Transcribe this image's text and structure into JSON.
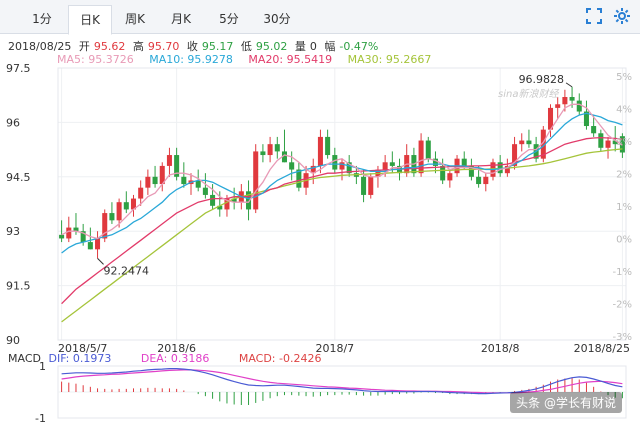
{
  "tabs": [
    {
      "label": "1分",
      "active": false
    },
    {
      "label": "日K",
      "active": true
    },
    {
      "label": "周K",
      "active": false
    },
    {
      "label": "月K",
      "active": false
    },
    {
      "label": "5分",
      "active": false
    },
    {
      "label": "30分",
      "active": false
    }
  ],
  "info": {
    "date": "2018/08/25",
    "open_label": "开",
    "open": "95.62",
    "high_label": "高",
    "high": "95.70",
    "close_label": "收",
    "close": "95.17",
    "low_label": "低",
    "low": "95.02",
    "vol_label": "量",
    "vol": "0",
    "chg_label": "幅",
    "chg": "-0.47%"
  },
  "ma": {
    "ma5": "MA5: 95.3726",
    "ma10": "MA10: 95.9278",
    "ma20": "MA20: 95.5419",
    "ma30": "MA30: 95.2667"
  },
  "macd_info": {
    "title": "MACD",
    "dif": "DIF: 0.1973",
    "dea": "DEA: 0.3186",
    "macd": "MACD: -0.2426"
  },
  "watermark": "头条 @学长有财说",
  "logo": "sina新浪财经",
  "colors": {
    "up": "#e0393e",
    "down": "#2ea043",
    "ma5": "#e89ab6",
    "ma10": "#2aa8d8",
    "ma20": "#e23b6a",
    "ma30": "#a5c43a",
    "dif": "#4a5bd4",
    "dea": "#e040c8"
  },
  "chart_data": {
    "type": "candlestick",
    "ylim": [
      90,
      97.5
    ],
    "y_ticks": [
      "97.5",
      "96",
      "94.5",
      "93",
      "91.5",
      "90"
    ],
    "pct_ticks": [
      "5%",
      "4%",
      "3%",
      "2%",
      "1%",
      "0%",
      "-1%",
      "-2%",
      "-3%"
    ],
    "x_ticks": [
      "2018/5/7",
      "2018/6",
      "2018/7",
      "2018/8",
      "2018/8/25"
    ],
    "annotations": {
      "high": "96.9828",
      "low": "92.2474"
    },
    "candles": [
      [
        92.9,
        93.3,
        92.7,
        92.8
      ],
      [
        92.8,
        93.4,
        92.7,
        93.1
      ],
      [
        93.1,
        93.5,
        92.9,
        93.0
      ],
      [
        93.0,
        93.2,
        92.6,
        92.7
      ],
      [
        92.7,
        93.1,
        92.5,
        92.5
      ],
      [
        92.5,
        93.0,
        92.25,
        92.8
      ],
      [
        92.8,
        93.6,
        92.7,
        93.5
      ],
      [
        93.5,
        93.8,
        93.2,
        93.3
      ],
      [
        93.3,
        93.9,
        93.1,
        93.8
      ],
      [
        93.8,
        94.1,
        93.5,
        93.6
      ],
      [
        93.6,
        94.0,
        93.4,
        93.9
      ],
      [
        93.9,
        94.4,
        93.7,
        94.2
      ],
      [
        94.2,
        94.7,
        94.0,
        94.5
      ],
      [
        94.5,
        94.8,
        94.2,
        94.3
      ],
      [
        94.3,
        94.9,
        94.1,
        94.8
      ],
      [
        94.8,
        95.3,
        94.5,
        95.1
      ],
      [
        95.1,
        95.3,
        94.4,
        94.5
      ],
      [
        94.5,
        94.9,
        94.2,
        94.3
      ],
      [
        94.3,
        94.6,
        94.0,
        94.4
      ],
      [
        94.4,
        94.7,
        94.1,
        94.2
      ],
      [
        94.2,
        94.6,
        93.9,
        94.0
      ],
      [
        94.0,
        94.3,
        93.6,
        93.7
      ],
      [
        93.7,
        94.1,
        93.4,
        93.6
      ],
      [
        93.6,
        94.0,
        93.4,
        93.9
      ],
      [
        93.9,
        94.2,
        93.6,
        93.8
      ],
      [
        93.8,
        94.3,
        93.6,
        94.1
      ],
      [
        94.1,
        94.4,
        93.3,
        93.6
      ],
      [
        93.6,
        95.4,
        93.5,
        95.2
      ],
      [
        95.2,
        95.4,
        94.9,
        95.1
      ],
      [
        95.1,
        95.6,
        94.9,
        95.4
      ],
      [
        95.4,
        95.6,
        95.0,
        95.2
      ],
      [
        95.2,
        95.8,
        94.9,
        94.9
      ],
      [
        94.9,
        95.2,
        94.4,
        94.7
      ],
      [
        94.7,
        94.9,
        94.1,
        94.2
      ],
      [
        94.2,
        94.8,
        94.0,
        94.6
      ],
      [
        94.6,
        95.0,
        94.3,
        94.8
      ],
      [
        94.8,
        95.8,
        94.6,
        95.6
      ],
      [
        95.6,
        95.8,
        95.0,
        95.1
      ],
      [
        95.1,
        95.3,
        94.6,
        94.7
      ],
      [
        94.7,
        95.0,
        94.4,
        94.9
      ],
      [
        94.9,
        95.1,
        94.5,
        94.6
      ],
      [
        94.6,
        94.8,
        94.3,
        94.5
      ],
      [
        94.5,
        94.7,
        93.8,
        94.0
      ],
      [
        94.0,
        94.6,
        93.9,
        94.5
      ],
      [
        94.5,
        94.8,
        94.2,
        94.7
      ],
      [
        94.7,
        95.1,
        94.5,
        94.9
      ],
      [
        94.9,
        95.2,
        94.6,
        94.8
      ],
      [
        94.8,
        95.0,
        94.4,
        94.6
      ],
      [
        94.6,
        95.4,
        94.5,
        95.1
      ],
      [
        95.1,
        95.3,
        94.5,
        94.6
      ],
      [
        94.6,
        95.7,
        94.5,
        95.5
      ],
      [
        95.5,
        95.6,
        94.9,
        95.0
      ],
      [
        95.0,
        95.2,
        94.6,
        94.8
      ],
      [
        94.8,
        95.0,
        94.3,
        94.4
      ],
      [
        94.4,
        94.7,
        94.2,
        94.6
      ],
      [
        94.6,
        95.1,
        94.5,
        95.0
      ],
      [
        95.0,
        95.2,
        94.7,
        94.8
      ],
      [
        94.8,
        95.0,
        94.4,
        94.5
      ],
      [
        94.5,
        94.8,
        94.2,
        94.3
      ],
      [
        94.3,
        94.6,
        94.1,
        94.5
      ],
      [
        94.5,
        95.0,
        94.4,
        94.9
      ],
      [
        94.9,
        95.1,
        94.5,
        94.6
      ],
      [
        94.6,
        95.0,
        94.5,
        94.8
      ],
      [
        94.8,
        95.6,
        94.7,
        95.4
      ],
      [
        95.4,
        95.7,
        95.2,
        95.5
      ],
      [
        95.5,
        95.8,
        95.3,
        95.4
      ],
      [
        95.4,
        95.6,
        94.9,
        95.0
      ],
      [
        95.0,
        95.9,
        94.9,
        95.8
      ],
      [
        95.8,
        96.5,
        95.6,
        96.4
      ],
      [
        96.4,
        96.7,
        96.1,
        96.5
      ],
      [
        96.5,
        96.9,
        96.3,
        96.7
      ],
      [
        96.7,
        96.98,
        96.4,
        96.6
      ],
      [
        96.6,
        96.8,
        96.2,
        96.3
      ],
      [
        96.3,
        96.6,
        95.8,
        95.9
      ],
      [
        95.9,
        96.2,
        95.6,
        95.7
      ],
      [
        95.7,
        95.8,
        95.2,
        95.3
      ],
      [
        95.3,
        95.6,
        95.0,
        95.5
      ],
      [
        95.5,
        95.9,
        95.2,
        95.4
      ],
      [
        95.62,
        95.7,
        95.02,
        95.17
      ]
    ],
    "ma5": [
      92.9,
      93.0,
      93.0,
      92.95,
      92.85,
      92.8,
      92.95,
      93.05,
      93.2,
      93.4,
      93.6,
      93.75,
      93.95,
      94.05,
      94.3,
      94.55,
      94.6,
      94.6,
      94.55,
      94.45,
      94.3,
      94.15,
      93.95,
      93.85,
      93.8,
      93.8,
      93.8,
      94.1,
      94.35,
      94.7,
      94.95,
      95.1,
      95.05,
      94.9,
      94.7,
      94.6,
      94.7,
      94.85,
      94.95,
      95.0,
      94.85,
      94.75,
      94.55,
      94.5,
      94.5,
      94.6,
      94.75,
      94.75,
      94.85,
      94.85,
      94.95,
      95.0,
      94.95,
      94.85,
      94.7,
      94.75,
      94.75,
      94.75,
      94.7,
      94.6,
      94.6,
      94.7,
      94.75,
      94.9,
      95.1,
      95.25,
      95.25,
      95.45,
      95.8,
      96.1,
      96.4,
      96.5,
      96.5,
      96.4,
      96.15,
      95.9,
      95.65,
      95.5,
      95.37
    ],
    "ma10": [
      92.4,
      92.55,
      92.65,
      92.7,
      92.75,
      92.8,
      92.85,
      92.9,
      93.0,
      93.1,
      93.25,
      93.35,
      93.5,
      93.65,
      93.8,
      94.0,
      94.15,
      94.25,
      94.35,
      94.4,
      94.4,
      94.35,
      94.25,
      94.15,
      94.05,
      93.95,
      93.9,
      93.95,
      94.05,
      94.25,
      94.4,
      94.5,
      94.6,
      94.65,
      94.7,
      94.75,
      94.8,
      94.85,
      94.85,
      94.85,
      94.8,
      94.75,
      94.7,
      94.65,
      94.65,
      94.65,
      94.7,
      94.7,
      94.75,
      94.75,
      94.8,
      94.85,
      94.85,
      94.85,
      94.8,
      94.8,
      94.8,
      94.75,
      94.75,
      94.7,
      94.7,
      94.72,
      94.75,
      94.85,
      94.95,
      95.1,
      95.2,
      95.35,
      95.55,
      95.75,
      95.95,
      96.1,
      96.2,
      96.25,
      96.2,
      96.15,
      96.05,
      96.0,
      95.93
    ],
    "ma20": [
      91.0,
      91.2,
      91.4,
      91.55,
      91.7,
      91.85,
      92.0,
      92.15,
      92.3,
      92.45,
      92.6,
      92.75,
      92.9,
      93.05,
      93.2,
      93.35,
      93.5,
      93.6,
      93.7,
      93.8,
      93.85,
      93.9,
      93.9,
      93.9,
      93.95,
      93.95,
      93.95,
      94.0,
      94.05,
      94.15,
      94.2,
      94.3,
      94.35,
      94.4,
      94.45,
      94.5,
      94.55,
      94.6,
      94.6,
      94.62,
      94.64,
      94.65,
      94.66,
      94.67,
      94.68,
      94.69,
      94.7,
      94.71,
      94.72,
      94.73,
      94.74,
      94.75,
      94.76,
      94.77,
      94.78,
      94.78,
      94.79,
      94.8,
      94.8,
      94.81,
      94.82,
      94.83,
      94.85,
      94.9,
      94.95,
      95.0,
      95.05,
      95.1,
      95.2,
      95.3,
      95.4,
      95.45,
      95.5,
      95.55,
      95.57,
      95.58,
      95.57,
      95.56,
      95.54
    ],
    "ma30": [
      90.5,
      90.65,
      90.8,
      90.95,
      91.1,
      91.25,
      91.4,
      91.55,
      91.7,
      91.85,
      92.0,
      92.15,
      92.3,
      92.45,
      92.6,
      92.75,
      92.9,
      93.05,
      93.2,
      93.35,
      93.5,
      93.6,
      93.7,
      93.8,
      93.9,
      93.95,
      94.0,
      94.05,
      94.1,
      94.15,
      94.2,
      94.25,
      94.3,
      94.35,
      94.4,
      94.45,
      94.48,
      94.5,
      94.52,
      94.54,
      94.55,
      94.56,
      94.57,
      94.58,
      94.59,
      94.6,
      94.61,
      94.62,
      94.63,
      94.64,
      94.65,
      94.66,
      94.67,
      94.68,
      94.68,
      94.69,
      94.7,
      94.7,
      94.71,
      94.71,
      94.72,
      94.73,
      94.74,
      94.76,
      94.78,
      94.8,
      94.83,
      94.86,
      94.9,
      94.95,
      95.0,
      95.05,
      95.1,
      95.15,
      95.18,
      95.2,
      95.23,
      95.25,
      95.27
    ],
    "macd_ylim": [
      -1,
      1
    ],
    "macd_ticks": [
      "1",
      "-1"
    ],
    "dif": [
      0.7,
      0.72,
      0.74,
      0.74,
      0.73,
      0.72,
      0.72,
      0.73,
      0.75,
      0.77,
      0.8,
      0.82,
      0.85,
      0.87,
      0.88,
      0.9,
      0.9,
      0.88,
      0.85,
      0.8,
      0.74,
      0.66,
      0.57,
      0.48,
      0.4,
      0.33,
      0.27,
      0.25,
      0.24,
      0.25,
      0.26,
      0.26,
      0.24,
      0.21,
      0.18,
      0.15,
      0.14,
      0.14,
      0.13,
      0.12,
      0.1,
      0.08,
      0.05,
      0.03,
      0.02,
      0.02,
      0.02,
      0.01,
      0.01,
      0.01,
      0.02,
      0.02,
      0.01,
      0.0,
      -0.02,
      -0.03,
      -0.04,
      -0.05,
      -0.06,
      -0.06,
      -0.05,
      -0.04,
      -0.03,
      -0.01,
      0.02,
      0.06,
      0.12,
      0.2,
      0.3,
      0.4,
      0.48,
      0.55,
      0.58,
      0.56,
      0.5,
      0.42,
      0.33,
      0.25,
      0.2
    ],
    "dea": [
      0.5,
      0.54,
      0.58,
      0.61,
      0.63,
      0.65,
      0.66,
      0.68,
      0.69,
      0.71,
      0.73,
      0.75,
      0.77,
      0.79,
      0.81,
      0.83,
      0.84,
      0.85,
      0.85,
      0.84,
      0.82,
      0.79,
      0.75,
      0.7,
      0.64,
      0.58,
      0.52,
      0.46,
      0.41,
      0.37,
      0.34,
      0.32,
      0.3,
      0.28,
      0.26,
      0.24,
      0.22,
      0.2,
      0.19,
      0.17,
      0.15,
      0.14,
      0.12,
      0.1,
      0.09,
      0.07,
      0.06,
      0.05,
      0.04,
      0.04,
      0.03,
      0.03,
      0.03,
      0.02,
      0.02,
      0.01,
      0.0,
      -0.01,
      -0.02,
      -0.03,
      -0.03,
      -0.03,
      -0.03,
      -0.03,
      -0.02,
      0.0,
      0.02,
      0.06,
      0.1,
      0.16,
      0.22,
      0.28,
      0.34,
      0.38,
      0.4,
      0.41,
      0.39,
      0.36,
      0.32
    ]
  }
}
